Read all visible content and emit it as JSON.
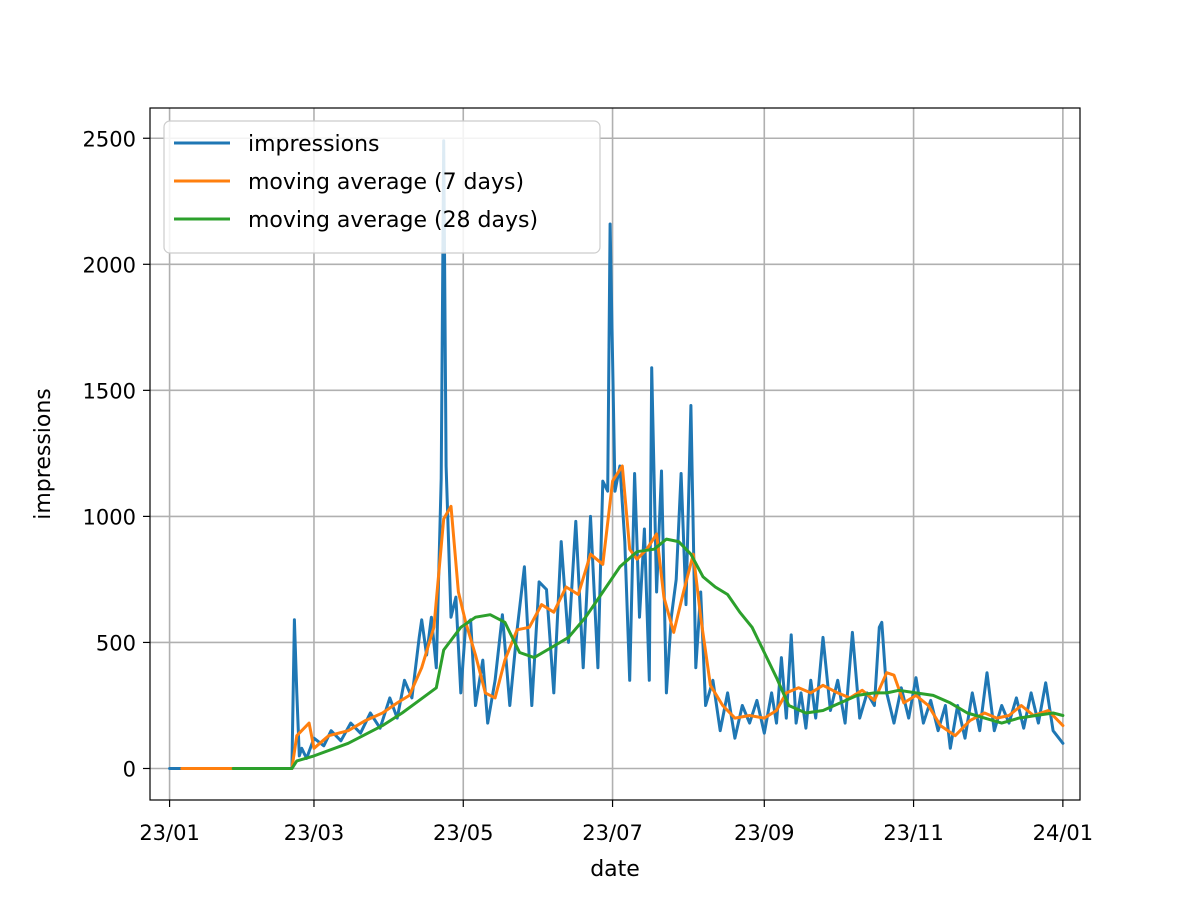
{
  "chart_data": {
    "type": "line",
    "xlabel": "date",
    "ylabel": "impressions",
    "x_axis": {
      "kind": "date",
      "range": [
        "2022-12-24",
        "2024-01-08"
      ],
      "ticks": [
        {
          "date": "2023-01-01",
          "label": "23/01"
        },
        {
          "date": "2023-03-01",
          "label": "23/03"
        },
        {
          "date": "2023-05-01",
          "label": "23/05"
        },
        {
          "date": "2023-07-01",
          "label": "23/07"
        },
        {
          "date": "2023-09-01",
          "label": "23/09"
        },
        {
          "date": "2023-11-01",
          "label": "23/11"
        },
        {
          "date": "2024-01-01",
          "label": "24/01"
        }
      ]
    },
    "ylim": [
      -125,
      2620
    ],
    "yticks": [
      0,
      500,
      1000,
      1500,
      2000,
      2500
    ],
    "grid": true,
    "legend": {
      "position": "top-left"
    },
    "series": [
      {
        "name": "impressions",
        "color": "#1f77b4",
        "points": [
          [
            "2023-01-01",
            0
          ],
          [
            "2023-01-15",
            0
          ],
          [
            "2023-02-01",
            0
          ],
          [
            "2023-02-15",
            0
          ],
          [
            "2023-02-20",
            0
          ],
          [
            "2023-02-21",
            590
          ],
          [
            "2023-02-22",
            300
          ],
          [
            "2023-02-23",
            50
          ],
          [
            "2023-02-24",
            80
          ],
          [
            "2023-02-26",
            40
          ],
          [
            "2023-03-01",
            120
          ],
          [
            "2023-03-05",
            90
          ],
          [
            "2023-03-08",
            150
          ],
          [
            "2023-03-12",
            110
          ],
          [
            "2023-03-16",
            180
          ],
          [
            "2023-03-20",
            140
          ],
          [
            "2023-03-24",
            220
          ],
          [
            "2023-03-28",
            160
          ],
          [
            "2023-04-01",
            280
          ],
          [
            "2023-04-04",
            200
          ],
          [
            "2023-04-07",
            350
          ],
          [
            "2023-04-10",
            280
          ],
          [
            "2023-04-13",
            520
          ],
          [
            "2023-04-14",
            590
          ],
          [
            "2023-04-16",
            450
          ],
          [
            "2023-04-18",
            600
          ],
          [
            "2023-04-20",
            400
          ],
          [
            "2023-04-22",
            1150
          ],
          [
            "2023-04-23",
            2490
          ],
          [
            "2023-04-24",
            1200
          ],
          [
            "2023-04-26",
            600
          ],
          [
            "2023-04-28",
            680
          ],
          [
            "2023-04-30",
            300
          ],
          [
            "2023-05-02",
            570
          ],
          [
            "2023-05-04",
            590
          ],
          [
            "2023-05-06",
            250
          ],
          [
            "2023-05-09",
            430
          ],
          [
            "2023-05-11",
            180
          ],
          [
            "2023-05-14",
            350
          ],
          [
            "2023-05-17",
            610
          ],
          [
            "2023-05-20",
            250
          ],
          [
            "2023-05-23",
            550
          ],
          [
            "2023-05-26",
            800
          ],
          [
            "2023-05-29",
            250
          ],
          [
            "2023-06-01",
            740
          ],
          [
            "2023-06-04",
            710
          ],
          [
            "2023-06-07",
            300
          ],
          [
            "2023-06-10",
            900
          ],
          [
            "2023-06-13",
            500
          ],
          [
            "2023-06-16",
            980
          ],
          [
            "2023-06-19",
            400
          ],
          [
            "2023-06-22",
            1000
          ],
          [
            "2023-06-25",
            400
          ],
          [
            "2023-06-27",
            1140
          ],
          [
            "2023-06-29",
            1100
          ],
          [
            "2023-06-30",
            2160
          ],
          [
            "2023-07-02",
            1100
          ],
          [
            "2023-07-04",
            1200
          ],
          [
            "2023-07-06",
            900
          ],
          [
            "2023-07-08",
            350
          ],
          [
            "2023-07-10",
            1170
          ],
          [
            "2023-07-12",
            600
          ],
          [
            "2023-07-14",
            950
          ],
          [
            "2023-07-16",
            350
          ],
          [
            "2023-07-17",
            1590
          ],
          [
            "2023-07-19",
            700
          ],
          [
            "2023-07-21",
            1180
          ],
          [
            "2023-07-23",
            300
          ],
          [
            "2023-07-25",
            600
          ],
          [
            "2023-07-27",
            750
          ],
          [
            "2023-07-29",
            1170
          ],
          [
            "2023-07-31",
            650
          ],
          [
            "2023-08-02",
            1440
          ],
          [
            "2023-08-04",
            400
          ],
          [
            "2023-08-06",
            700
          ],
          [
            "2023-08-08",
            250
          ],
          [
            "2023-08-11",
            350
          ],
          [
            "2023-08-14",
            150
          ],
          [
            "2023-08-17",
            300
          ],
          [
            "2023-08-20",
            120
          ],
          [
            "2023-08-23",
            250
          ],
          [
            "2023-08-26",
            180
          ],
          [
            "2023-08-29",
            270
          ],
          [
            "2023-09-01",
            140
          ],
          [
            "2023-09-04",
            300
          ],
          [
            "2023-09-06",
            180
          ],
          [
            "2023-09-08",
            440
          ],
          [
            "2023-09-10",
            200
          ],
          [
            "2023-09-12",
            530
          ],
          [
            "2023-09-14",
            180
          ],
          [
            "2023-09-16",
            300
          ],
          [
            "2023-09-18",
            160
          ],
          [
            "2023-09-20",
            350
          ],
          [
            "2023-09-22",
            200
          ],
          [
            "2023-09-25",
            520
          ],
          [
            "2023-09-28",
            230
          ],
          [
            "2023-10-01",
            350
          ],
          [
            "2023-10-04",
            180
          ],
          [
            "2023-10-07",
            540
          ],
          [
            "2023-10-10",
            200
          ],
          [
            "2023-10-13",
            300
          ],
          [
            "2023-10-16",
            250
          ],
          [
            "2023-10-18",
            560
          ],
          [
            "2023-10-19",
            580
          ],
          [
            "2023-10-21",
            300
          ],
          [
            "2023-10-24",
            180
          ],
          [
            "2023-10-27",
            320
          ],
          [
            "2023-10-30",
            200
          ],
          [
            "2023-11-02",
            360
          ],
          [
            "2023-11-05",
            180
          ],
          [
            "2023-11-08",
            270
          ],
          [
            "2023-11-11",
            150
          ],
          [
            "2023-11-14",
            250
          ],
          [
            "2023-11-16",
            80
          ],
          [
            "2023-11-19",
            250
          ],
          [
            "2023-11-22",
            120
          ],
          [
            "2023-11-25",
            300
          ],
          [
            "2023-11-28",
            150
          ],
          [
            "2023-12-01",
            380
          ],
          [
            "2023-12-04",
            150
          ],
          [
            "2023-12-07",
            250
          ],
          [
            "2023-12-10",
            180
          ],
          [
            "2023-12-13",
            280
          ],
          [
            "2023-12-16",
            160
          ],
          [
            "2023-12-19",
            300
          ],
          [
            "2023-12-22",
            180
          ],
          [
            "2023-12-25",
            340
          ],
          [
            "2023-12-28",
            150
          ],
          [
            "2024-01-01",
            100
          ]
        ]
      },
      {
        "name": "moving average (7 days)",
        "color": "#ff7f0e",
        "points": [
          [
            "2023-01-06",
            0
          ],
          [
            "2023-02-15",
            0
          ],
          [
            "2023-02-20",
            0
          ],
          [
            "2023-02-22",
            130
          ],
          [
            "2023-02-27",
            180
          ],
          [
            "2023-03-01",
            80
          ],
          [
            "2023-03-07",
            130
          ],
          [
            "2023-03-15",
            150
          ],
          [
            "2023-03-22",
            190
          ],
          [
            "2023-03-29",
            220
          ],
          [
            "2023-04-04",
            260
          ],
          [
            "2023-04-09",
            290
          ],
          [
            "2023-04-14",
            400
          ],
          [
            "2023-04-19",
            560
          ],
          [
            "2023-04-23",
            990
          ],
          [
            "2023-04-26",
            1040
          ],
          [
            "2023-04-29",
            700
          ],
          [
            "2023-05-02",
            580
          ],
          [
            "2023-05-06",
            450
          ],
          [
            "2023-05-10",
            300
          ],
          [
            "2023-05-14",
            280
          ],
          [
            "2023-05-18",
            430
          ],
          [
            "2023-05-23",
            550
          ],
          [
            "2023-05-28",
            560
          ],
          [
            "2023-06-02",
            650
          ],
          [
            "2023-06-07",
            620
          ],
          [
            "2023-06-12",
            720
          ],
          [
            "2023-06-17",
            690
          ],
          [
            "2023-06-22",
            850
          ],
          [
            "2023-06-27",
            810
          ],
          [
            "2023-07-01",
            1140
          ],
          [
            "2023-07-05",
            1200
          ],
          [
            "2023-07-08",
            870
          ],
          [
            "2023-07-11",
            830
          ],
          [
            "2023-07-15",
            870
          ],
          [
            "2023-07-19",
            930
          ],
          [
            "2023-07-22",
            680
          ],
          [
            "2023-07-26",
            540
          ],
          [
            "2023-07-30",
            700
          ],
          [
            "2023-08-03",
            850
          ],
          [
            "2023-08-06",
            600
          ],
          [
            "2023-08-10",
            330
          ],
          [
            "2023-08-15",
            250
          ],
          [
            "2023-08-20",
            200
          ],
          [
            "2023-08-26",
            210
          ],
          [
            "2023-09-01",
            200
          ],
          [
            "2023-09-06",
            230
          ],
          [
            "2023-09-10",
            300
          ],
          [
            "2023-09-15",
            320
          ],
          [
            "2023-09-20",
            300
          ],
          [
            "2023-09-25",
            330
          ],
          [
            "2023-10-01",
            300
          ],
          [
            "2023-10-06",
            280
          ],
          [
            "2023-10-11",
            310
          ],
          [
            "2023-10-16",
            270
          ],
          [
            "2023-10-21",
            380
          ],
          [
            "2023-10-24",
            370
          ],
          [
            "2023-10-28",
            260
          ],
          [
            "2023-11-02",
            290
          ],
          [
            "2023-11-07",
            250
          ],
          [
            "2023-11-12",
            170
          ],
          [
            "2023-11-18",
            130
          ],
          [
            "2023-11-24",
            190
          ],
          [
            "2023-11-30",
            220
          ],
          [
            "2023-12-05",
            200
          ],
          [
            "2023-12-10",
            210
          ],
          [
            "2023-12-15",
            250
          ],
          [
            "2023-12-20",
            210
          ],
          [
            "2023-12-26",
            230
          ],
          [
            "2024-01-01",
            170
          ]
        ]
      },
      {
        "name": "moving average (28 days)",
        "color": "#2ca02c",
        "points": [
          [
            "2023-01-27",
            0
          ],
          [
            "2023-02-10",
            0
          ],
          [
            "2023-02-20",
            0
          ],
          [
            "2023-02-22",
            30
          ],
          [
            "2023-03-01",
            50
          ],
          [
            "2023-03-15",
            100
          ],
          [
            "2023-03-29",
            170
          ],
          [
            "2023-04-06",
            220
          ],
          [
            "2023-04-13",
            270
          ],
          [
            "2023-04-20",
            320
          ],
          [
            "2023-04-23",
            470
          ],
          [
            "2023-04-30",
            560
          ],
          [
            "2023-05-06",
            600
          ],
          [
            "2023-05-12",
            610
          ],
          [
            "2023-05-18",
            580
          ],
          [
            "2023-05-24",
            460
          ],
          [
            "2023-05-30",
            440
          ],
          [
            "2023-06-06",
            480
          ],
          [
            "2023-06-13",
            520
          ],
          [
            "2023-06-20",
            600
          ],
          [
            "2023-06-27",
            700
          ],
          [
            "2023-07-04",
            800
          ],
          [
            "2023-07-11",
            860
          ],
          [
            "2023-07-18",
            870
          ],
          [
            "2023-07-23",
            910
          ],
          [
            "2023-07-28",
            900
          ],
          [
            "2023-08-02",
            850
          ],
          [
            "2023-08-07",
            760
          ],
          [
            "2023-08-12",
            720
          ],
          [
            "2023-08-17",
            690
          ],
          [
            "2023-08-22",
            620
          ],
          [
            "2023-08-27",
            560
          ],
          [
            "2023-09-01",
            460
          ],
          [
            "2023-09-06",
            360
          ],
          [
            "2023-09-11",
            250
          ],
          [
            "2023-09-18",
            220
          ],
          [
            "2023-09-25",
            230
          ],
          [
            "2023-10-02",
            260
          ],
          [
            "2023-10-09",
            290
          ],
          [
            "2023-10-16",
            300
          ],
          [
            "2023-10-21",
            300
          ],
          [
            "2023-10-26",
            310
          ],
          [
            "2023-11-02",
            300
          ],
          [
            "2023-11-09",
            290
          ],
          [
            "2023-11-16",
            260
          ],
          [
            "2023-11-23",
            220
          ],
          [
            "2023-11-30",
            200
          ],
          [
            "2023-12-07",
            180
          ],
          [
            "2023-12-14",
            200
          ],
          [
            "2023-12-21",
            210
          ],
          [
            "2023-12-28",
            220
          ],
          [
            "2024-01-01",
            210
          ]
        ]
      }
    ]
  }
}
